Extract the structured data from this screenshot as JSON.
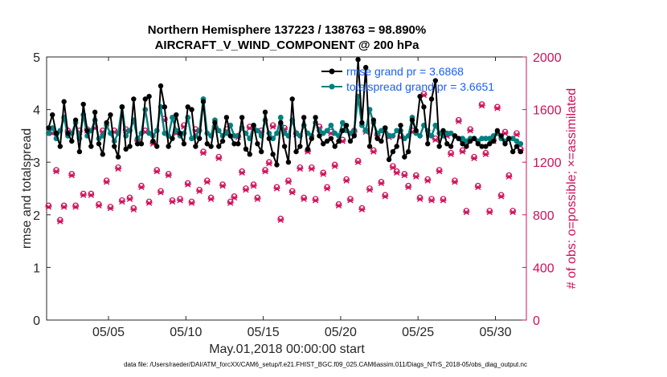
{
  "chart_data": {
    "type": "line",
    "title": "Northern Hemisphere 137223 / 138763 = 98.890%",
    "subtitle": "AIRCRAFT_V_WIND_COMPONENT @ 200 hPa",
    "xlabel": "May.01,2018 00:00:00 start",
    "ylabel": "rmse and totalspread",
    "ylabel_right": "# of obs: o=possible; ×=assimilated",
    "footnote": "data file: /Users/raeder/DAI/ATM_forcXX/CAM6_setup/f.e21.FHIST_BGC.f09_025.CAM6assim.011/Diags_NTrS_2018-05/obs_diag_output.nc",
    "x_range": [
      1.0,
      32.0
    ],
    "ylim": [
      0,
      5
    ],
    "ylim_right": [
      0,
      2000
    ],
    "y_ticks": [
      "0",
      "1",
      "2",
      "3",
      "4",
      "5"
    ],
    "y_ticks_right": [
      "0",
      "400",
      "800",
      "1200",
      "1600",
      "2000"
    ],
    "x_ticks": [
      {
        "x": 5,
        "label": "05/05"
      },
      {
        "x": 10,
        "label": "05/10"
      },
      {
        "x": 15,
        "label": "05/15"
      },
      {
        "x": 20,
        "label": "05/20"
      },
      {
        "x": 25,
        "label": "05/25"
      },
      {
        "x": 30,
        "label": "05/30"
      }
    ],
    "legend": [
      {
        "label": "rmse grand pr = 3.6868",
        "color": "#000000"
      },
      {
        "label": "totalspread grand pr = 3.6651",
        "color": "#008080"
      }
    ],
    "series": [
      {
        "name": "rmse",
        "color": "#000000",
        "values": [
          3.65,
          3.9,
          3.55,
          3.3,
          4.15,
          3.55,
          3.4,
          3.8,
          3.2,
          4.1,
          3.6,
          3.3,
          3.95,
          3.35,
          3.15,
          3.75,
          3.9,
          3.3,
          3.1,
          4.05,
          3.25,
          3.3,
          4.2,
          3.35,
          3.35,
          4.2,
          4.25,
          3.4,
          3.3,
          4.45,
          4.05,
          3.3,
          3.45,
          3.9,
          3.55,
          3.35,
          4.05,
          4.0,
          3.3,
          3.45,
          4.15,
          3.35,
          3.3,
          3.75,
          3.3,
          3.4,
          3.85,
          3.5,
          3.35,
          3.35,
          3.85,
          3.25,
          3.15,
          3.7,
          3.35,
          3.2,
          3.95,
          3.45,
          3.15,
          2.95,
          3.75,
          3.3,
          3.0,
          4.2,
          3.2,
          3.3,
          3.85,
          3.25,
          3.45,
          3.85,
          3.5,
          3.35,
          3.4,
          3.45,
          3.3,
          3.4,
          3.6,
          3.7,
          3.4,
          3.5,
          4.95,
          3.75,
          4.8,
          3.3,
          3.8,
          3.45,
          3.4,
          3.65,
          3.05,
          3.2,
          3.3,
          3.7,
          3.1,
          3.2,
          3.8,
          3.6,
          4.25,
          4.05,
          3.35,
          4.2,
          4.55,
          3.3,
          3.6,
          3.35,
          3.3,
          3.5,
          3.45,
          3.35,
          3.3,
          3.4,
          3.45,
          3.35,
          3.3,
          3.3,
          3.35,
          3.4,
          3.6,
          3.5,
          3.35,
          3.45,
          3.2,
          3.3,
          3.2
        ]
      },
      {
        "name": "totalspread",
        "color": "#008080",
        "values": [
          3.55,
          3.65,
          3.45,
          3.6,
          3.85,
          3.5,
          3.55,
          3.75,
          3.45,
          3.9,
          3.5,
          3.6,
          3.8,
          3.45,
          3.5,
          3.7,
          3.55,
          3.4,
          3.55,
          4.05,
          3.5,
          3.6,
          3.8,
          3.45,
          3.55,
          4.0,
          3.55,
          3.5,
          3.6,
          4.05,
          3.55,
          3.5,
          3.85,
          3.6,
          3.5,
          3.55,
          3.85,
          3.45,
          3.5,
          3.6,
          4.2,
          3.55,
          3.5,
          3.8,
          3.6,
          3.5,
          3.55,
          3.7,
          3.5,
          3.5,
          3.65,
          3.55,
          3.45,
          3.7,
          3.6,
          3.5,
          3.8,
          3.55,
          3.45,
          3.55,
          3.85,
          3.55,
          3.5,
          3.8,
          3.55,
          3.5,
          3.7,
          3.55,
          3.5,
          3.75,
          3.6,
          3.55,
          3.6,
          3.7,
          3.55,
          3.5,
          3.75,
          3.6,
          3.55,
          3.6,
          4.25,
          3.7,
          3.6,
          4.0,
          3.75,
          3.55,
          3.6,
          3.65,
          3.5,
          3.5,
          3.6,
          3.6,
          3.45,
          3.5,
          3.85,
          3.55,
          3.5,
          3.7,
          3.6,
          3.5,
          3.7,
          3.55,
          3.5,
          3.55,
          3.55,
          3.5,
          3.45,
          3.45,
          3.4,
          3.45,
          3.45,
          3.4,
          3.45,
          3.45,
          3.45,
          3.5,
          3.55,
          3.45,
          3.4,
          3.45,
          3.45,
          3.4,
          3.35
        ]
      },
      {
        "name": "obs_possible",
        "color": "#d0105a",
        "marker": "o",
        "values": [
          870,
          1430,
          1140,
          760,
          870,
          1440,
          1110,
          870,
          1440,
          960,
          1450,
          960,
          1470,
          880,
          1440,
          1060,
          860,
          1440,
          1160,
          910,
          1450,
          930,
          850,
          1370,
          1020,
          1440,
          900,
          1350,
          1140,
          980,
          1530,
          1110,
          910,
          1430,
          920,
          1480,
          1040,
          900,
          1450,
          990,
          1280,
          1060,
          930,
          1470,
          1240,
          1030,
          1450,
          900,
          940,
          1400,
          1130,
          1000,
          1470,
          1030,
          930,
          1440,
          1140,
          1200,
          1480,
          1010,
          770,
          1460,
          1060,
          980,
          1420,
          1160,
          930,
          1290,
          1160,
          920,
          1470,
          1120,
          1010,
          1430,
          1180,
          880,
          1370,
          1070,
          920,
          1440,
          1210,
          850,
          1440,
          1000,
          1290,
          1410,
          1050,
          950,
          1400,
          1170,
          1130,
          1400,
          1110,
          1020,
          1440,
          1100,
          930,
          1720,
          1070,
          920,
          1380,
          1140,
          920,
          1410,
          1270,
          1060,
          1520,
          1290,
          830,
          1450,
          1240,
          1020,
          1640,
          1270,
          830,
          1370,
          1620,
          950,
          1430,
          1100,
          830,
          1420,
          1300
        ]
      },
      {
        "name": "obs_assimilated",
        "color": "#d0105a",
        "marker": "x",
        "values": [
          860,
          1420,
          1130,
          750,
          860,
          1430,
          1100,
          860,
          1430,
          950,
          1440,
          950,
          1460,
          870,
          1430,
          1050,
          850,
          1430,
          1150,
          900,
          1440,
          920,
          840,
          1360,
          1010,
          1430,
          890,
          1340,
          1130,
          970,
          1520,
          1100,
          900,
          1420,
          910,
          1470,
          1030,
          890,
          1440,
          980,
          1270,
          1050,
          920,
          1460,
          1230,
          1020,
          1440,
          890,
          930,
          1390,
          1120,
          990,
          1460,
          1020,
          920,
          1430,
          1130,
          1190,
          1470,
          1000,
          760,
          1450,
          1050,
          970,
          1410,
          1150,
          920,
          1280,
          1150,
          910,
          1460,
          1110,
          1000,
          1420,
          1170,
          870,
          1360,
          1060,
          910,
          1430,
          1200,
          840,
          1430,
          990,
          1280,
          1400,
          1040,
          940,
          1390,
          1160,
          1120,
          1390,
          1100,
          1010,
          1430,
          1090,
          920,
          1710,
          1060,
          910,
          1370,
          1130,
          910,
          1400,
          1260,
          1050,
          1510,
          1280,
          820,
          1440,
          1230,
          1010,
          1630,
          1260,
          820,
          1360,
          1610,
          940,
          1420,
          1090,
          820,
          1410,
          1290
        ]
      }
    ]
  }
}
